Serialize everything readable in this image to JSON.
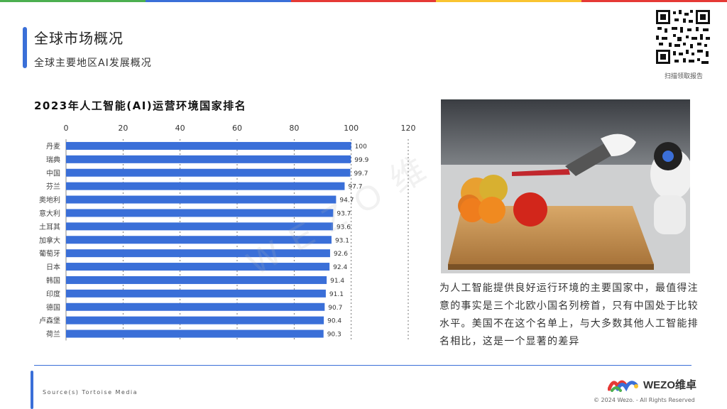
{
  "header": {
    "title": "全球市场概况",
    "subtitle": "全球主要地区AI发展概况",
    "qr_caption": "扫描领取报告"
  },
  "chart_title": "2023年人工智能(AI)运营环境国家排名",
  "chart_data": {
    "type": "bar",
    "orientation": "horizontal",
    "title": "2023年人工智能(AI)运营环境国家排名",
    "categories": [
      "丹麦",
      "瑞典",
      "中国",
      "芬兰",
      "奥地利",
      "意大利",
      "土耳其",
      "加拿大",
      "葡萄牙",
      "日本",
      "韩国",
      "印度",
      "德国",
      "卢森堡",
      "荷兰"
    ],
    "values": [
      100,
      99.9,
      99.7,
      97.7,
      94.7,
      93.7,
      93.6,
      93.1,
      92.6,
      92.4,
      91.4,
      91.1,
      90.7,
      90.4,
      90.3
    ],
    "value_labels": [
      "100",
      "99.9",
      "99.7",
      "97.7",
      "94.7",
      "93.7",
      "93.6",
      "93.1",
      "92.6",
      "92.4",
      "91.4",
      "91.1",
      "90.7",
      "90.4",
      "90.3"
    ],
    "xlim": [
      0,
      120
    ],
    "xticks": [
      0,
      20,
      40,
      60,
      80,
      100,
      120
    ],
    "xtick_labels": [
      "0",
      "20",
      "40",
      "60",
      "80",
      "100",
      "120"
    ],
    "axis_position": "top",
    "grid": true,
    "bar_color": "#3a6fd8"
  },
  "body_text": "为人工智能提供良好运行环境的主要国家中，最值得注意的事实是三个北欧小国名列榜首，只有中国处于比较水平。美国不在这个名单上，与大多数其他人工智能排名相比，这是一个显著的差异",
  "footer": {
    "source": "Source(s)  Tortoise Media",
    "logo_text": "WEZO维卓",
    "copyright": "© 2024 Wezo. - All Rights Reserved"
  },
  "watermark": "WEZO维",
  "colors": {
    "accent": "#3a6fd8",
    "topbar": [
      "#4caf50",
      "#3a6fd8",
      "#e53935",
      "#f9c431",
      "#e53935"
    ]
  }
}
